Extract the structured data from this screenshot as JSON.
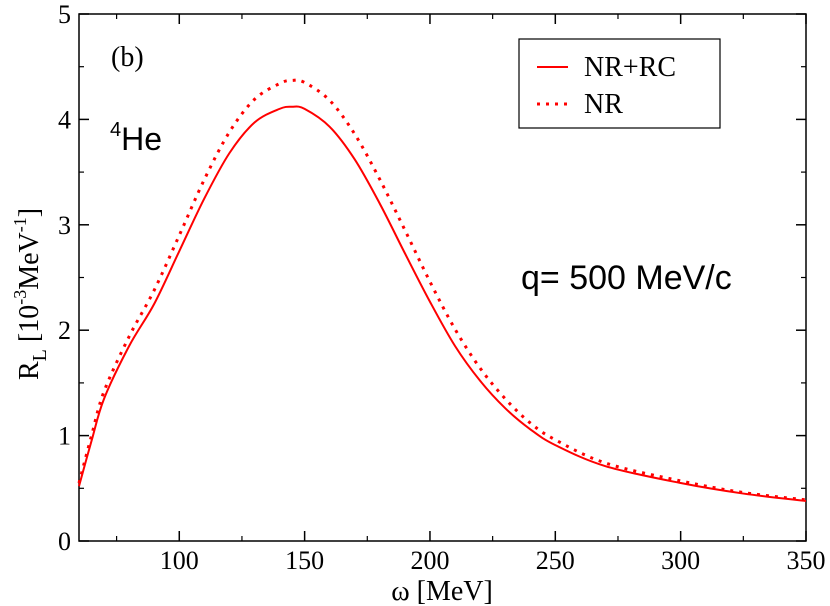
{
  "chart_data": {
    "type": "line",
    "title": "",
    "xlabel": "ω [MeV]",
    "ylabel": {
      "base": "R",
      "sub": "L",
      "unit_open": " [10",
      "unit_exp1": "-3",
      "unit_mid": "MeV",
      "unit_exp2": "-1",
      "unit_close": "]"
    },
    "xlim": [
      60,
      350
    ],
    "ylim": [
      0,
      5
    ],
    "xticks": [
      100,
      150,
      200,
      250,
      300,
      350
    ],
    "yticks": [
      0,
      1,
      2,
      3,
      4,
      5
    ],
    "legend_position": "top-right",
    "series": [
      {
        "name": "NR+RC",
        "color": "#ff0000",
        "style": "solid",
        "x": [
          60,
          65,
          70,
          80,
          90,
          100,
          110,
          120,
          130,
          140,
          145,
          150,
          160,
          170,
          180,
          190,
          200,
          210,
          220,
          230,
          240,
          250,
          270,
          300,
          325,
          350
        ],
        "y": [
          0.52,
          0.95,
          1.35,
          1.85,
          2.25,
          2.75,
          3.25,
          3.68,
          3.97,
          4.1,
          4.12,
          4.1,
          3.93,
          3.62,
          3.2,
          2.73,
          2.27,
          1.85,
          1.52,
          1.26,
          1.06,
          0.91,
          0.71,
          0.55,
          0.45,
          0.38
        ]
      },
      {
        "name": "NR",
        "color": "#ff0000",
        "style": "dotted",
        "x": [
          60,
          65,
          70,
          80,
          90,
          100,
          110,
          120,
          130,
          140,
          145,
          150,
          160,
          170,
          180,
          190,
          200,
          210,
          220,
          230,
          240,
          250,
          270,
          300,
          325,
          350
        ],
        "y": [
          0.55,
          1.0,
          1.42,
          1.94,
          2.38,
          2.9,
          3.43,
          3.88,
          4.19,
          4.34,
          4.37,
          4.35,
          4.18,
          3.86,
          3.43,
          2.95,
          2.46,
          2.01,
          1.64,
          1.35,
          1.12,
          0.96,
          0.74,
          0.57,
          0.46,
          0.39
        ]
      }
    ],
    "annotations": {
      "panel": "(b)",
      "nucleus_sup": "4",
      "nucleus": "He",
      "momentum": "q= 500 MeV/c"
    }
  }
}
